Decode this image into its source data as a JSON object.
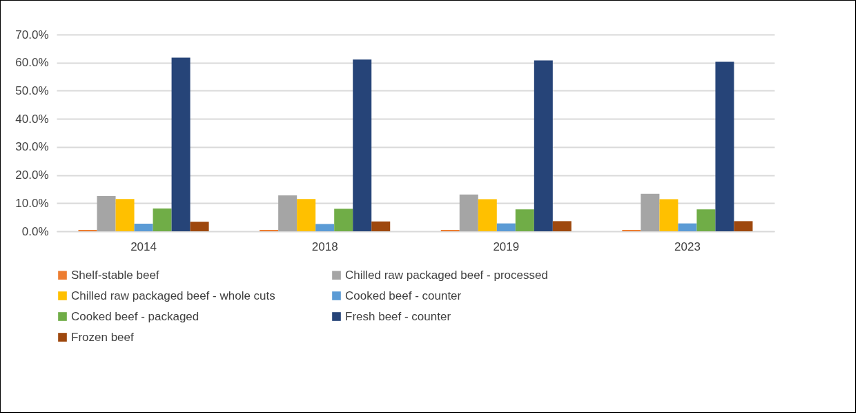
{
  "chart_data": {
    "type": "bar",
    "categories": [
      "2014",
      "2018",
      "2019",
      "2023"
    ],
    "series": [
      {
        "name": "Shelf-stable beef",
        "color": "#ed7d31",
        "values": [
          0.5,
          0.5,
          0.5,
          0.5
        ]
      },
      {
        "name": "Chilled raw packaged beef - processed",
        "color": "#a5a5a5",
        "values": [
          12.5,
          12.8,
          13.1,
          13.3
        ]
      },
      {
        "name": "Chilled raw packaged beef - whole cuts",
        "color": "#ffc000",
        "values": [
          11.5,
          11.5,
          11.4,
          11.4
        ]
      },
      {
        "name": "Cooked beef - counter",
        "color": "#5b9bd5",
        "values": [
          2.7,
          2.6,
          2.8,
          2.8
        ]
      },
      {
        "name": "Cooked beef - packaged",
        "color": "#70ad47",
        "values": [
          8.1,
          8.0,
          7.8,
          7.8
        ]
      },
      {
        "name": "Fresh beef - counter",
        "color": "#264478",
        "values": [
          61.8,
          61.1,
          60.8,
          60.3
        ]
      },
      {
        "name": "Frozen beef",
        "color": "#9e480e",
        "values": [
          3.4,
          3.5,
          3.6,
          3.6
        ]
      }
    ],
    "ylim": [
      0,
      70
    ],
    "yticks": [
      {
        "value": 0,
        "label": "0.0%"
      },
      {
        "value": 10,
        "label": "10.0%"
      },
      {
        "value": 20,
        "label": "20.0%"
      },
      {
        "value": 30,
        "label": "30.0%"
      },
      {
        "value": 40,
        "label": "40.0%"
      },
      {
        "value": 50,
        "label": "50.0%"
      },
      {
        "value": 60,
        "label": "60.0%"
      },
      {
        "value": 70,
        "label": "70.0%"
      }
    ],
    "grid": "y",
    "legend": "bottom"
  }
}
